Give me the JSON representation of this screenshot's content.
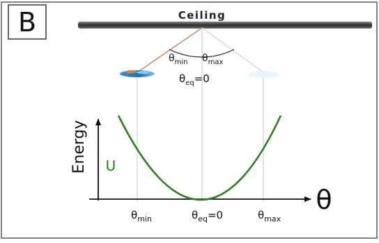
{
  "panel": {
    "label": "B",
    "ceiling_label": "Ceiling"
  },
  "pendulum": {
    "theta_symbol": "θ",
    "min_sub": "min",
    "max_sub": "max",
    "eq_sub": "eq",
    "eq_value": "=0"
  },
  "graph": {
    "y_axis_label": "Energy",
    "x_axis_label": "θ",
    "curve_label": "U",
    "tick_symbol": "θ",
    "tick_min_sub": "min",
    "tick_eq_sub": "eq",
    "tick_eq_value": "=0",
    "tick_max_sub": "max"
  },
  "colors": {
    "frame": "#4d4d4d",
    "ceiling": "#3c3c3c",
    "curve": "#2e7d1e",
    "string_left": "#c88a6a",
    "string_right": "#e6d6cc",
    "guide": "#c8c8c8",
    "text": "#111111"
  }
}
